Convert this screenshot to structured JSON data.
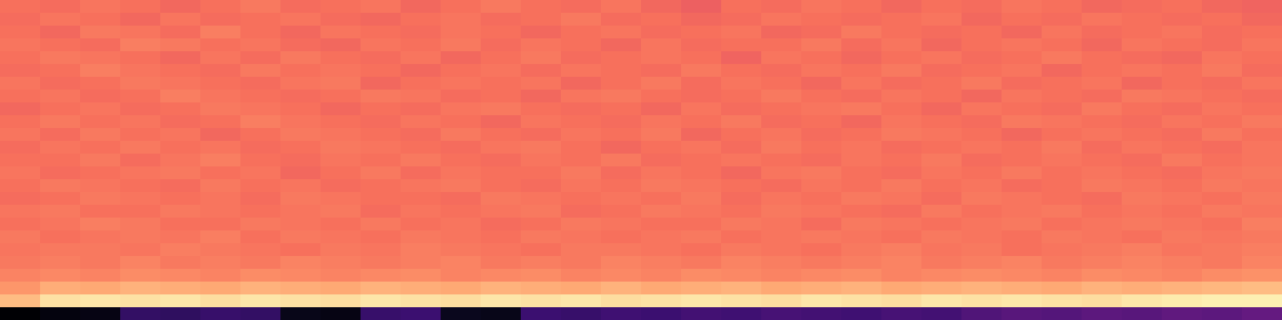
{
  "chart_data": {
    "type": "heatmap",
    "tick_labels": false,
    "zlim": [
      0,
      1
    ],
    "cells": [
      [
        0.7,
        0.69,
        0.71,
        0.7,
        0.68,
        0.7,
        0.72,
        0.69,
        0.7,
        0.71,
        0.68,
        0.7,
        0.72,
        0.7,
        0.69,
        0.71,
        0.68,
        0.66,
        0.7,
        0.69,
        0.71,
        0.7,
        0.68,
        0.7,
        0.69,
        0.71,
        0.7,
        0.68,
        0.69,
        0.7,
        0.68,
        0.67
      ],
      [
        0.69,
        0.71,
        0.7,
        0.68,
        0.71,
        0.69,
        0.7,
        0.71,
        0.69,
        0.68,
        0.7,
        0.71,
        0.69,
        0.7,
        0.72,
        0.69,
        0.7,
        0.68,
        0.69,
        0.71,
        0.7,
        0.69,
        0.7,
        0.71,
        0.68,
        0.7,
        0.69,
        0.71,
        0.7,
        0.69,
        0.7,
        0.68
      ],
      [
        0.7,
        0.68,
        0.72,
        0.71,
        0.69,
        0.73,
        0.7,
        0.68,
        0.71,
        0.7,
        0.69,
        0.71,
        0.7,
        0.68,
        0.7,
        0.71,
        0.69,
        0.7,
        0.71,
        0.68,
        0.69,
        0.72,
        0.7,
        0.69,
        0.7,
        0.68,
        0.71,
        0.69,
        0.7,
        0.71,
        0.69,
        0.7
      ],
      [
        0.71,
        0.7,
        0.69,
        0.73,
        0.72,
        0.7,
        0.71,
        0.69,
        0.68,
        0.71,
        0.7,
        0.72,
        0.69,
        0.71,
        0.7,
        0.68,
        0.71,
        0.69,
        0.7,
        0.7,
        0.72,
        0.69,
        0.71,
        0.68,
        0.7,
        0.71,
        0.7,
        0.68,
        0.71,
        0.7,
        0.69,
        0.71
      ],
      [
        0.7,
        0.72,
        0.71,
        0.7,
        0.68,
        0.71,
        0.69,
        0.72,
        0.7,
        0.69,
        0.71,
        0.68,
        0.7,
        0.72,
        0.69,
        0.7,
        0.71,
        0.7,
        0.67,
        0.71,
        0.7,
        0.68,
        0.7,
        0.71,
        0.69,
        0.7,
        0.72,
        0.7,
        0.69,
        0.68,
        0.71,
        0.7
      ],
      [
        0.69,
        0.7,
        0.73,
        0.71,
        0.7,
        0.69,
        0.72,
        0.7,
        0.71,
        0.7,
        0.68,
        0.7,
        0.71,
        0.69,
        0.71,
        0.7,
        0.69,
        0.72,
        0.7,
        0.69,
        0.71,
        0.7,
        0.72,
        0.69,
        0.7,
        0.71,
        0.68,
        0.7,
        0.71,
        0.7,
        0.72,
        0.69
      ],
      [
        0.71,
        0.69,
        0.7,
        0.72,
        0.71,
        0.7,
        0.69,
        0.71,
        0.72,
        0.68,
        0.7,
        0.71,
        0.7,
        0.71,
        0.68,
        0.7,
        0.72,
        0.69,
        0.71,
        0.7,
        0.68,
        0.71,
        0.69,
        0.7,
        0.72,
        0.69,
        0.7,
        0.71,
        0.68,
        0.7,
        0.69,
        0.71
      ],
      [
        0.7,
        0.71,
        0.69,
        0.7,
        0.73,
        0.71,
        0.7,
        0.69,
        0.7,
        0.72,
        0.71,
        0.69,
        0.7,
        0.68,
        0.71,
        0.72,
        0.7,
        0.69,
        0.7,
        0.72,
        0.7,
        0.69,
        0.71,
        0.7,
        0.68,
        0.71,
        0.7,
        0.69,
        0.72,
        0.71,
        0.7,
        0.69
      ],
      [
        0.68,
        0.7,
        0.71,
        0.69,
        0.7,
        0.72,
        0.71,
        0.7,
        0.68,
        0.7,
        0.69,
        0.71,
        0.72,
        0.7,
        0.69,
        0.7,
        0.68,
        0.71,
        0.69,
        0.7,
        0.71,
        0.72,
        0.7,
        0.68,
        0.71,
        0.7,
        0.69,
        0.72,
        0.7,
        0.69,
        0.71,
        0.7
      ],
      [
        0.7,
        0.72,
        0.7,
        0.71,
        0.69,
        0.7,
        0.73,
        0.71,
        0.7,
        0.69,
        0.71,
        0.7,
        0.68,
        0.71,
        0.7,
        0.69,
        0.71,
        0.7,
        0.72,
        0.69,
        0.7,
        0.68,
        0.71,
        0.7,
        0.69,
        0.72,
        0.71,
        0.7,
        0.69,
        0.71,
        0.7,
        0.72
      ],
      [
        0.71,
        0.69,
        0.72,
        0.7,
        0.71,
        0.68,
        0.7,
        0.72,
        0.71,
        0.7,
        0.69,
        0.72,
        0.7,
        0.69,
        0.71,
        0.7,
        0.72,
        0.68,
        0.7,
        0.71,
        0.69,
        0.7,
        0.72,
        0.71,
        0.7,
        0.68,
        0.7,
        0.71,
        0.7,
        0.69,
        0.72,
        0.7
      ],
      [
        0.69,
        0.71,
        0.7,
        0.72,
        0.7,
        0.71,
        0.69,
        0.7,
        0.72,
        0.71,
        0.7,
        0.69,
        0.71,
        0.72,
        0.7,
        0.68,
        0.7,
        0.71,
        0.69,
        0.72,
        0.7,
        0.71,
        0.69,
        0.7,
        0.71,
        0.7,
        0.72,
        0.69,
        0.71,
        0.7,
        0.69,
        0.71
      ],
      [
        0.7,
        0.7,
        0.72,
        0.69,
        0.71,
        0.73,
        0.7,
        0.69,
        0.71,
        0.7,
        0.72,
        0.7,
        0.69,
        0.71,
        0.7,
        0.72,
        0.69,
        0.7,
        0.71,
        0.7,
        0.69,
        0.71,
        0.7,
        0.72,
        0.69,
        0.7,
        0.71,
        0.7,
        0.69,
        0.72,
        0.7,
        0.71
      ],
      [
        0.71,
        0.69,
        0.7,
        0.71,
        0.72,
        0.7,
        0.71,
        0.68,
        0.7,
        0.72,
        0.69,
        0.71,
        0.7,
        0.7,
        0.72,
        0.69,
        0.71,
        0.7,
        0.68,
        0.71,
        0.72,
        0.7,
        0.69,
        0.71,
        0.7,
        0.72,
        0.7,
        0.71,
        0.7,
        0.69,
        0.71,
        0.72
      ],
      [
        0.7,
        0.72,
        0.71,
        0.7,
        0.69,
        0.72,
        0.7,
        0.71,
        0.69,
        0.7,
        0.71,
        0.72,
        0.7,
        0.69,
        0.71,
        0.7,
        0.72,
        0.71,
        0.7,
        0.69,
        0.71,
        0.7,
        0.72,
        0.7,
        0.71,
        0.69,
        0.7,
        0.72,
        0.71,
        0.7,
        0.72,
        0.71
      ],
      [
        0.69,
        0.7,
        0.72,
        0.71,
        0.7,
        0.71,
        0.69,
        0.72,
        0.71,
        0.7,
        0.7,
        0.69,
        0.72,
        0.71,
        0.7,
        0.71,
        0.7,
        0.72,
        0.69,
        0.71,
        0.7,
        0.72,
        0.71,
        0.69,
        0.72,
        0.71,
        0.7,
        0.69,
        0.72,
        0.71,
        0.7,
        0.72
      ],
      [
        0.71,
        0.72,
        0.7,
        0.7,
        0.72,
        0.71,
        0.7,
        0.71,
        0.72,
        0.69,
        0.71,
        0.7,
        0.71,
        0.72,
        0.69,
        0.7,
        0.72,
        0.71,
        0.7,
        0.72,
        0.71,
        0.7,
        0.69,
        0.72,
        0.7,
        0.71,
        0.72,
        0.7,
        0.71,
        0.7,
        0.72,
        0.71
      ],
      [
        0.7,
        0.71,
        0.73,
        0.72,
        0.7,
        0.7,
        0.72,
        0.71,
        0.7,
        0.72,
        0.7,
        0.71,
        0.69,
        0.7,
        0.72,
        0.71,
        0.7,
        0.7,
        0.72,
        0.71,
        0.69,
        0.72,
        0.71,
        0.7,
        0.71,
        0.72,
        0.7,
        0.71,
        0.72,
        0.71,
        0.7,
        0.73
      ],
      [
        0.72,
        0.7,
        0.71,
        0.72,
        0.71,
        0.73,
        0.7,
        0.72,
        0.71,
        0.7,
        0.72,
        0.71,
        0.7,
        0.72,
        0.71,
        0.7,
        0.71,
        0.72,
        0.7,
        0.71,
        0.72,
        0.71,
        0.7,
        0.72,
        0.71,
        0.7,
        0.72,
        0.71,
        0.7,
        0.72,
        0.71,
        0.72
      ],
      [
        0.71,
        0.72,
        0.72,
        0.71,
        0.73,
        0.72,
        0.71,
        0.7,
        0.72,
        0.71,
        0.73,
        0.72,
        0.71,
        0.7,
        0.72,
        0.72,
        0.71,
        0.7,
        0.72,
        0.71,
        0.7,
        0.72,
        0.73,
        0.71,
        0.72,
        0.7,
        0.71,
        0.72,
        0.73,
        0.71,
        0.72,
        0.73
      ],
      [
        0.72,
        0.73,
        0.72,
        0.74,
        0.72,
        0.73,
        0.72,
        0.74,
        0.73,
        0.72,
        0.73,
        0.74,
        0.72,
        0.73,
        0.72,
        0.74,
        0.73,
        0.72,
        0.74,
        0.73,
        0.72,
        0.73,
        0.74,
        0.72,
        0.73,
        0.74,
        0.72,
        0.73,
        0.74,
        0.73,
        0.72,
        0.74
      ],
      [
        0.74,
        0.75,
        0.74,
        0.76,
        0.75,
        0.74,
        0.76,
        0.75,
        0.74,
        0.75,
        0.76,
        0.74,
        0.75,
        0.76,
        0.74,
        0.75,
        0.74,
        0.76,
        0.75,
        0.74,
        0.75,
        0.76,
        0.74,
        0.75,
        0.76,
        0.75,
        0.74,
        0.76,
        0.75,
        0.74,
        0.76,
        0.77
      ],
      [
        0.78,
        0.83,
        0.82,
        0.84,
        0.83,
        0.82,
        0.84,
        0.83,
        0.82,
        0.84,
        0.83,
        0.82,
        0.84,
        0.83,
        0.82,
        0.84,
        0.82,
        0.83,
        0.84,
        0.82,
        0.83,
        0.84,
        0.82,
        0.83,
        0.84,
        0.83,
        0.82,
        0.84,
        0.83,
        0.84,
        0.85,
        0.86
      ],
      [
        0.86,
        0.94,
        0.95,
        0.94,
        0.95,
        0.93,
        0.95,
        0.94,
        0.93,
        0.95,
        0.94,
        0.93,
        0.95,
        0.94,
        0.95,
        0.93,
        0.94,
        0.95,
        0.94,
        0.93,
        0.95,
        0.94,
        0.93,
        0.95,
        0.94,
        0.95,
        0.94,
        0.93,
        0.95,
        0.96,
        0.97,
        0.97
      ],
      [
        0.0,
        0.02,
        0.03,
        0.18,
        0.17,
        0.19,
        0.18,
        0.04,
        0.03,
        0.19,
        0.2,
        0.05,
        0.04,
        0.2,
        0.19,
        0.21,
        0.2,
        0.22,
        0.21,
        0.23,
        0.22,
        0.21,
        0.23,
        0.22,
        0.25,
        0.27,
        0.26,
        0.28,
        0.27,
        0.29,
        0.28,
        0.3
      ]
    ]
  }
}
